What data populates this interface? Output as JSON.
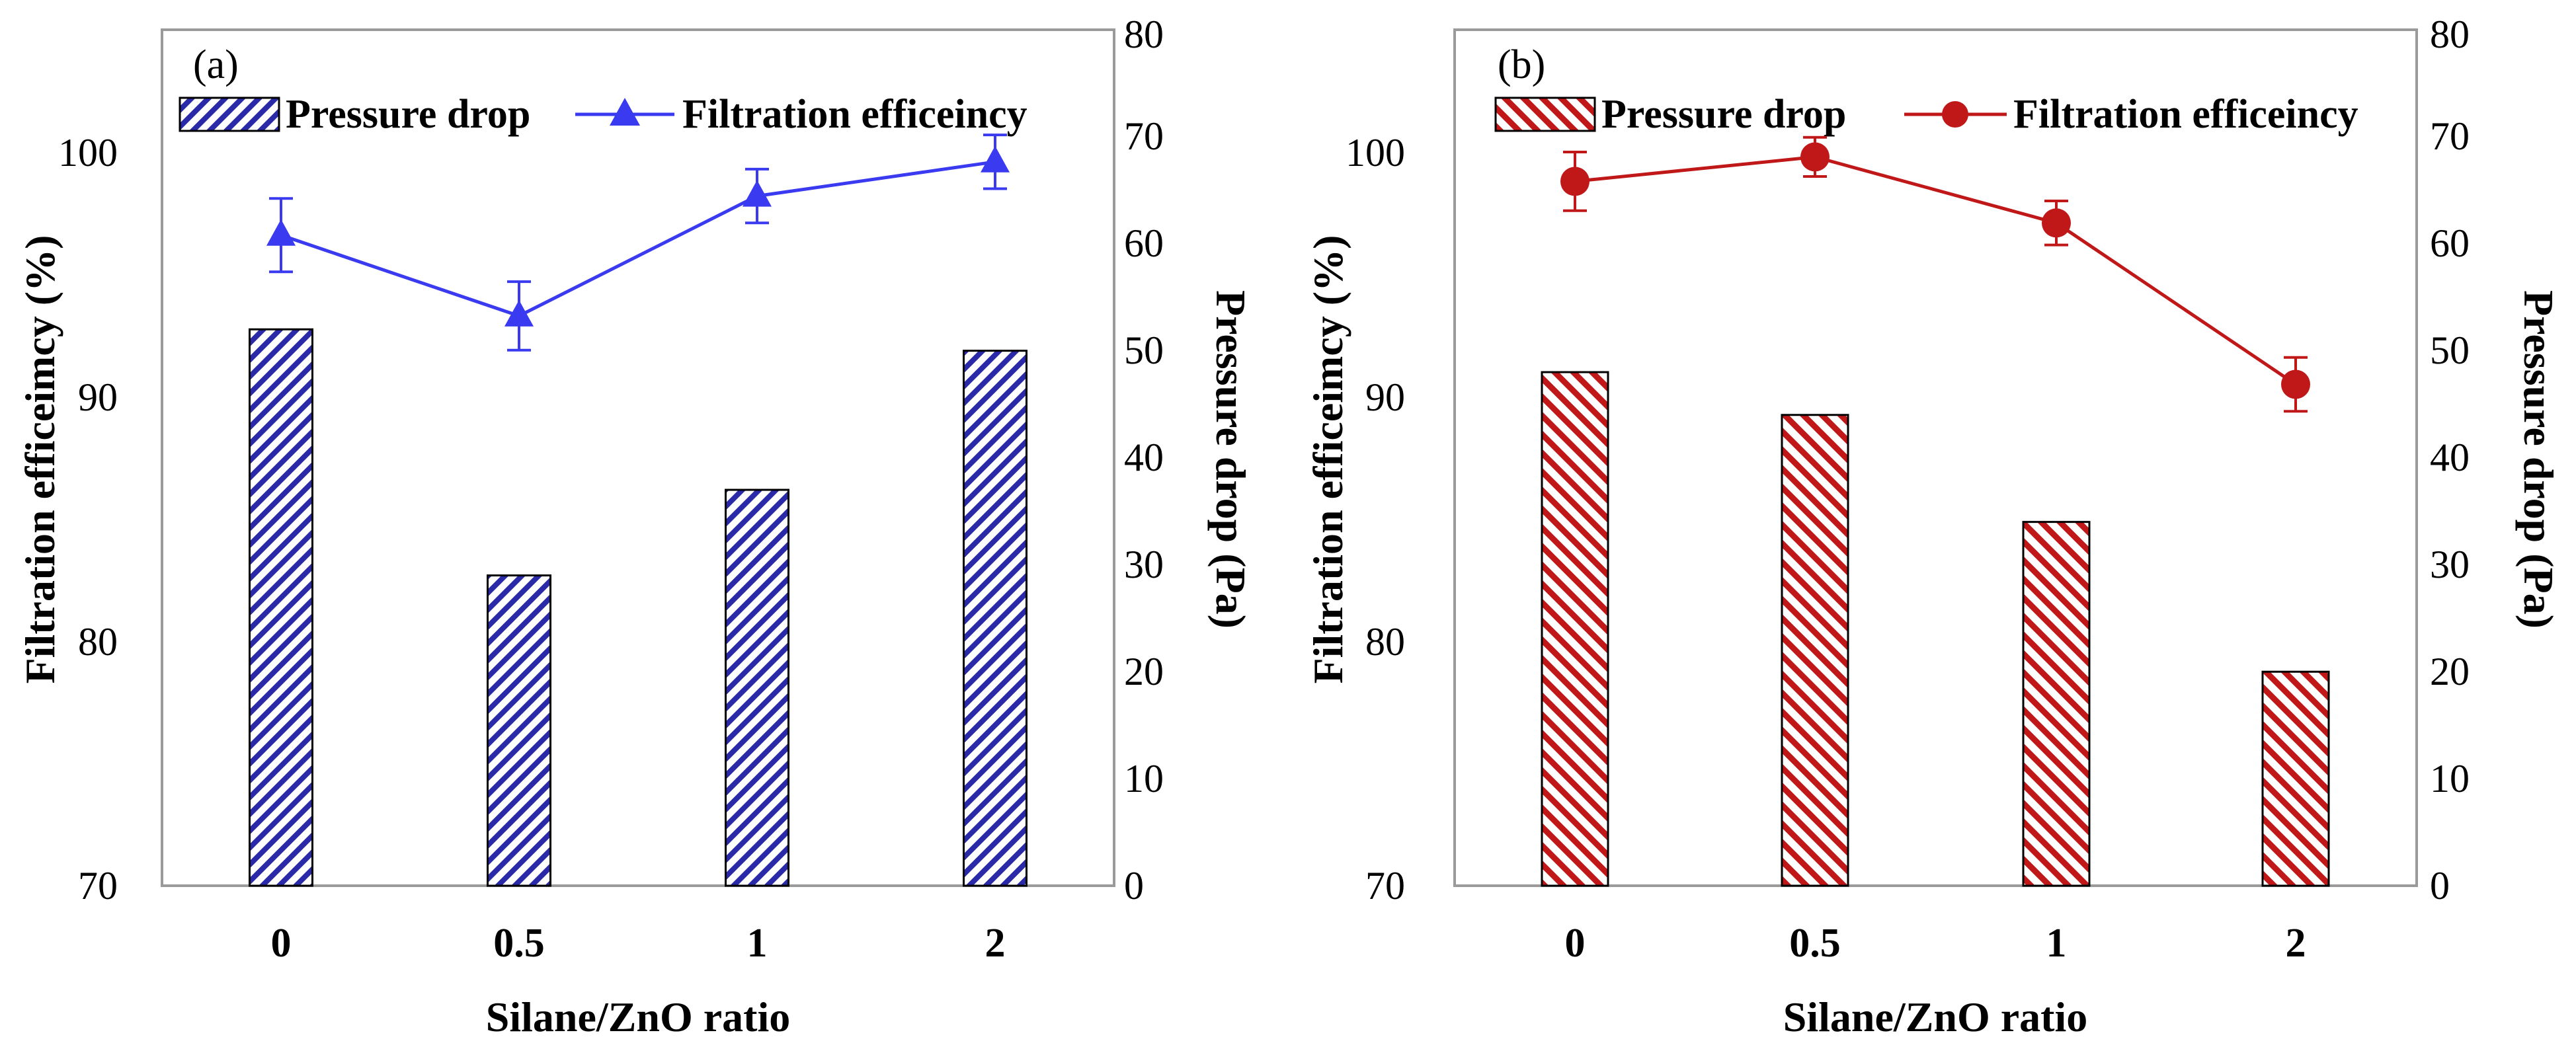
{
  "colors": {
    "panel_a_bar_hatch": "#2a2aa8",
    "panel_a_line": "#3a3af0",
    "panel_b_bar_hatch": "#c01818",
    "panel_b_line": "#c01818",
    "axis": "#9a9a9a"
  },
  "chart_data": [
    {
      "panel_label": "(a)",
      "type": "bar+line",
      "xlabel": "Silane/ZnO ratio",
      "ylabel_left": "Filtration efficeimcy (%)",
      "ylabel_right": "Pressure drop (Pa)",
      "categories": [
        "0",
        "0.5",
        "1",
        "2"
      ],
      "left_axis": {
        "ylim": [
          70,
          105
        ],
        "ticks": [
          "70",
          "80",
          "90",
          "100"
        ],
        "tick_values": [
          70,
          80,
          90,
          100
        ]
      },
      "right_axis": {
        "ylim": [
          0,
          80
        ],
        "ticks": [
          "0",
          "10",
          "20",
          "30",
          "40",
          "50",
          "60",
          "70",
          "80"
        ],
        "tick_values": [
          0,
          10,
          20,
          30,
          40,
          50,
          60,
          70,
          80
        ]
      },
      "legend": {
        "bar_label": "Pressure drop",
        "line_label": "Filtration efficeincy",
        "line_marker": "triangle",
        "position": "top"
      },
      "series": [
        {
          "name": "Pressure drop",
          "axis": "right",
          "kind": "bar",
          "values": [
            52,
            29,
            37,
            50
          ]
        },
        {
          "name": "Filtration efficeincy",
          "axis": "left",
          "kind": "line",
          "values": [
            96.6,
            93.3,
            98.2,
            99.6
          ],
          "errors": [
            1.5,
            1.4,
            1.1,
            1.1
          ]
        }
      ]
    },
    {
      "panel_label": "(b)",
      "type": "bar+line",
      "xlabel": "Silane/ZnO ratio",
      "ylabel_left": "Filtration efficeimcy (%)",
      "ylabel_right": "Pressure drop (Pa)",
      "categories": [
        "0",
        "0.5",
        "1",
        "2"
      ],
      "left_axis": {
        "ylim": [
          70,
          105
        ],
        "ticks": [
          "70",
          "80",
          "90",
          "100"
        ],
        "tick_values": [
          70,
          80,
          90,
          100
        ]
      },
      "right_axis": {
        "ylim": [
          0,
          80
        ],
        "ticks": [
          "0",
          "10",
          "20",
          "30",
          "40",
          "50",
          "60",
          "70",
          "80"
        ],
        "tick_values": [
          0,
          10,
          20,
          30,
          40,
          50,
          60,
          70,
          80
        ]
      },
      "legend": {
        "bar_label": "Pressure drop",
        "line_label": "Filtration efficeincy",
        "line_marker": "circle",
        "position": "top"
      },
      "series": [
        {
          "name": "Pressure drop",
          "axis": "right",
          "kind": "bar",
          "values": [
            48,
            44,
            34,
            20
          ]
        },
        {
          "name": "Filtration efficeincy",
          "axis": "left",
          "kind": "line",
          "values": [
            98.8,
            99.8,
            97.1,
            90.5
          ],
          "errors": [
            1.2,
            0.8,
            0.9,
            1.1
          ]
        }
      ]
    }
  ]
}
